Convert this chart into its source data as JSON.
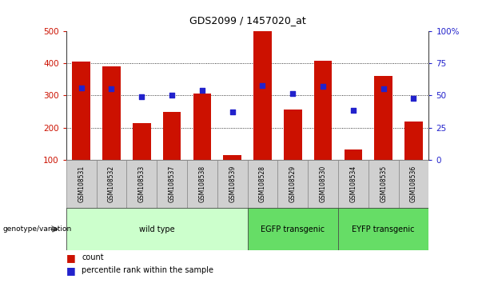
{
  "title": "GDS2099 / 1457020_at",
  "samples": [
    "GSM108531",
    "GSM108532",
    "GSM108533",
    "GSM108537",
    "GSM108538",
    "GSM108539",
    "GSM108528",
    "GSM108529",
    "GSM108530",
    "GSM108534",
    "GSM108535",
    "GSM108536"
  ],
  "counts": [
    405,
    390,
    215,
    250,
    305,
    115,
    500,
    257,
    408,
    133,
    362,
    220
  ],
  "percentile_vals": [
    323,
    320,
    297,
    302,
    317,
    248,
    330,
    307,
    328,
    255,
    320,
    292
  ],
  "bar_bottom": 100,
  "ylim_left": [
    100,
    500
  ],
  "ylim_right": [
    0,
    100
  ],
  "yticks_left": [
    100,
    200,
    300,
    400,
    500
  ],
  "yticks_right": [
    0,
    25,
    50,
    75,
    100
  ],
  "bar_color": "#cc1100",
  "dot_color": "#2222cc",
  "grid_color": "#000000",
  "background_color": "#ffffff",
  "label_color_left": "#cc1100",
  "label_color_right": "#2222cc",
  "genotype_label": "genotype/variation",
  "legend_count_label": "count",
  "legend_percentile_label": "percentile rank within the sample",
  "group_spans": [
    {
      "label": "wild type",
      "start": 0,
      "end": 5,
      "color": "#ccffcc"
    },
    {
      "label": "EGFP transgenic",
      "start": 6,
      "end": 8,
      "color": "#66dd66"
    },
    {
      "label": "EYFP transgenic",
      "start": 9,
      "end": 11,
      "color": "#66dd66"
    }
  ],
  "tick_bg_color": "#d0d0d0",
  "tick_border_color": "#888888"
}
